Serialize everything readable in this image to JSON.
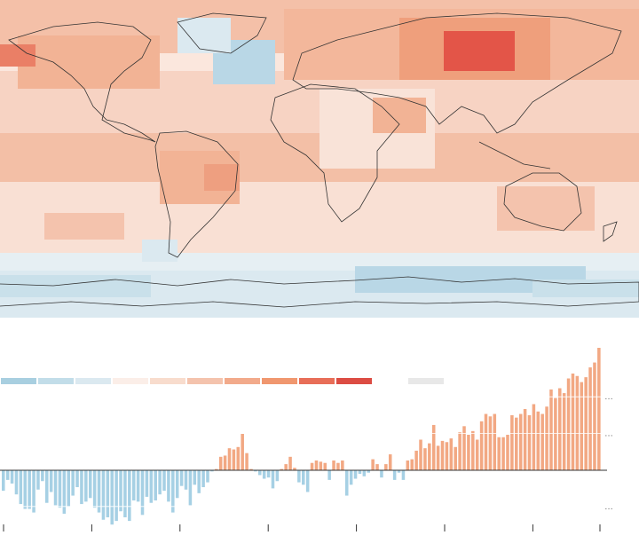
{
  "map": {
    "colors": {
      "ocean_base": "#fbe7dd",
      "land_outline": "#333333",
      "cool_strong": "#a8cfe0",
      "cool_light": "#dbe9f0",
      "warm_light": "#f6d2c1",
      "warm_mid": "#f2b395",
      "warm_strong": "#ee8f6a",
      "hot": "#e35548",
      "nodata": "#eeeeee"
    }
  },
  "legend": {
    "swatches": [
      "#a8cfe0",
      "#c2dde9",
      "#dbe9f0",
      "#fbeee8",
      "#f8dccd",
      "#f4c3ad",
      "#f2aa8b",
      "#f0976f",
      "#e86e58",
      "#dc4c43"
    ],
    "nodata_color": "#e8e8e8"
  },
  "chart_data": {
    "type": "bar",
    "title": "",
    "xlabel": "",
    "ylabel": "",
    "baseline": 0,
    "ylim": [
      -0.5,
      1.0
    ],
    "ytick_labels": [
      "…",
      "…",
      "…"
    ],
    "ytick_values": [
      0.6,
      0.3,
      -0.3
    ],
    "x_tick_count": 8,
    "colors": {
      "positive": "#f2a883",
      "negative": "#a6d0e4",
      "axis": "#333333",
      "grid": "#ffffff"
    },
    "values": [
      -0.17,
      -0.08,
      -0.11,
      -0.2,
      -0.28,
      -0.32,
      -0.32,
      -0.35,
      -0.16,
      -0.09,
      -0.27,
      -0.18,
      -0.29,
      -0.31,
      -0.36,
      -0.3,
      -0.21,
      -0.14,
      -0.28,
      -0.26,
      -0.23,
      -0.31,
      -0.35,
      -0.41,
      -0.39,
      -0.45,
      -0.42,
      -0.34,
      -0.39,
      -0.42,
      -0.25,
      -0.26,
      -0.37,
      -0.22,
      -0.27,
      -0.25,
      -0.2,
      -0.17,
      -0.26,
      -0.35,
      -0.23,
      -0.13,
      -0.16,
      -0.29,
      -0.12,
      -0.19,
      -0.14,
      -0.1,
      -0.01,
      0.01,
      0.11,
      0.12,
      0.18,
      0.17,
      0.19,
      0.3,
      0.14,
      0.01,
      -0.01,
      -0.04,
      -0.07,
      -0.06,
      -0.15,
      -0.09,
      0.01,
      0.05,
      0.11,
      0.02,
      -0.1,
      -0.12,
      -0.18,
      0.06,
      0.08,
      0.07,
      0.06,
      -0.08,
      0.08,
      0.06,
      0.08,
      -0.21,
      -0.12,
      -0.07,
      -0.03,
      -0.05,
      -0.02,
      0.09,
      0.05,
      -0.06,
      0.05,
      0.13,
      -0.08,
      -0.02,
      -0.08,
      0.08,
      0.09,
      0.16,
      0.25,
      0.18,
      0.22,
      0.37,
      0.2,
      0.24,
      0.23,
      0.26,
      0.19,
      0.31,
      0.36,
      0.29,
      0.32,
      0.25,
      0.4,
      0.46,
      0.44,
      0.46,
      0.27,
      0.27,
      0.29,
      0.45,
      0.43,
      0.46,
      0.5,
      0.45,
      0.54,
      0.48,
      0.46,
      0.52,
      0.66,
      0.59,
      0.67,
      0.63,
      0.75,
      0.79,
      0.77,
      0.72,
      0.76,
      0.84,
      0.88,
      1.0
    ]
  }
}
